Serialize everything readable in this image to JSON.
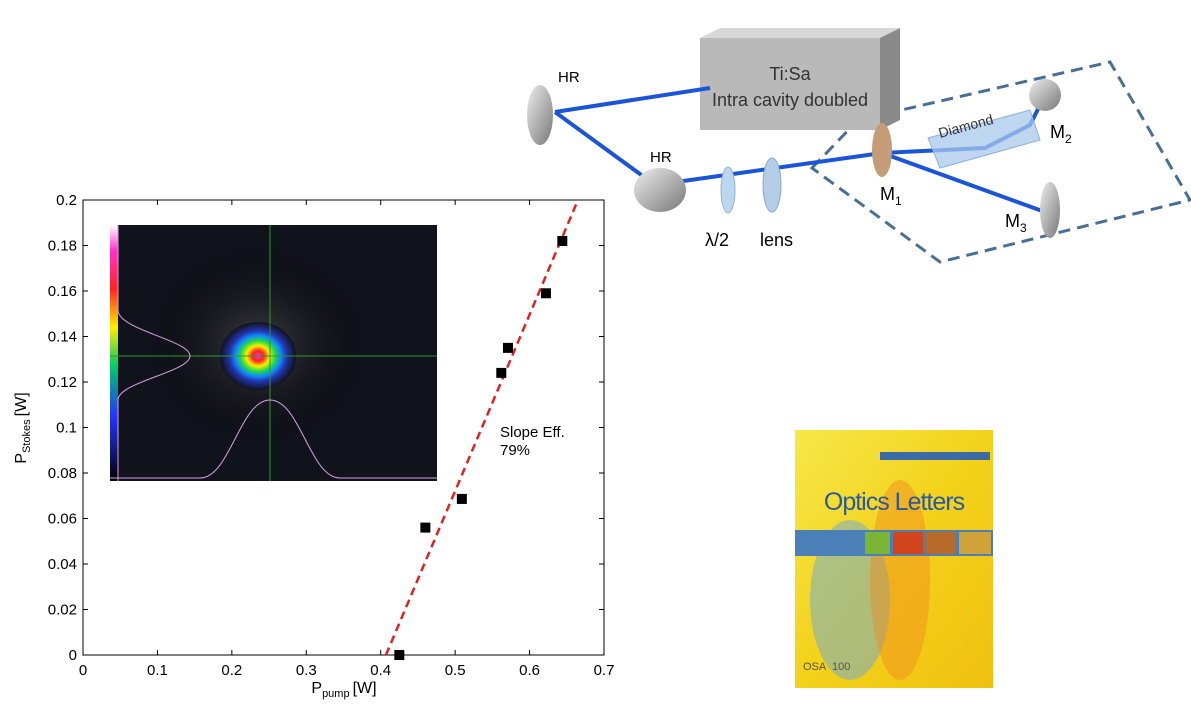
{
  "chart_data": {
    "type": "scatter",
    "x": [
      0.425,
      0.46,
      0.509,
      0.562,
      0.571,
      0.622,
      0.644
    ],
    "values": [
      0,
      0.056,
      0.0686,
      0.124,
      0.135,
      0.159,
      0.182
    ],
    "color": "#000000",
    "fit": {
      "x": [
        0.407,
        0.665
      ],
      "y": [
        0,
        0.2
      ],
      "color": "#dd2222"
    },
    "xlim": [
      0,
      0.7
    ],
    "xticks": [
      0,
      0.1,
      0.2,
      0.3,
      0.4,
      0.5,
      0.6,
      0.7
    ],
    "ylim": [
      0,
      0.2
    ],
    "yticks": [
      0,
      0.02,
      0.04,
      0.06,
      0.08,
      0.1,
      0.12,
      0.14,
      0.16,
      0.18,
      0.2
    ],
    "xlabel": {
      "main": "P",
      "sub": "pump",
      "unit": "[W]"
    },
    "ylabel": {
      "main": "P",
      "sub": "Stokes",
      "unit": "[W]"
    },
    "annotation": [
      "Slope Eff.",
      "79%"
    ]
  },
  "diagram": {
    "hr1": "HR",
    "hr2": "HR",
    "laser": [
      "Ti:Sa",
      "Intra cavity doubled"
    ],
    "crystal": "Diamond",
    "m1": {
      "main": "M",
      "sub": "1"
    },
    "m2": {
      "main": "M",
      "sub": "2"
    },
    "m3": {
      "main": "M",
      "sub": "3"
    },
    "waveplate": "λ/2",
    "lens": "lens"
  },
  "cover": {
    "title": "Optics Letters",
    "publisher": "OSA",
    "anniversary": "100"
  }
}
